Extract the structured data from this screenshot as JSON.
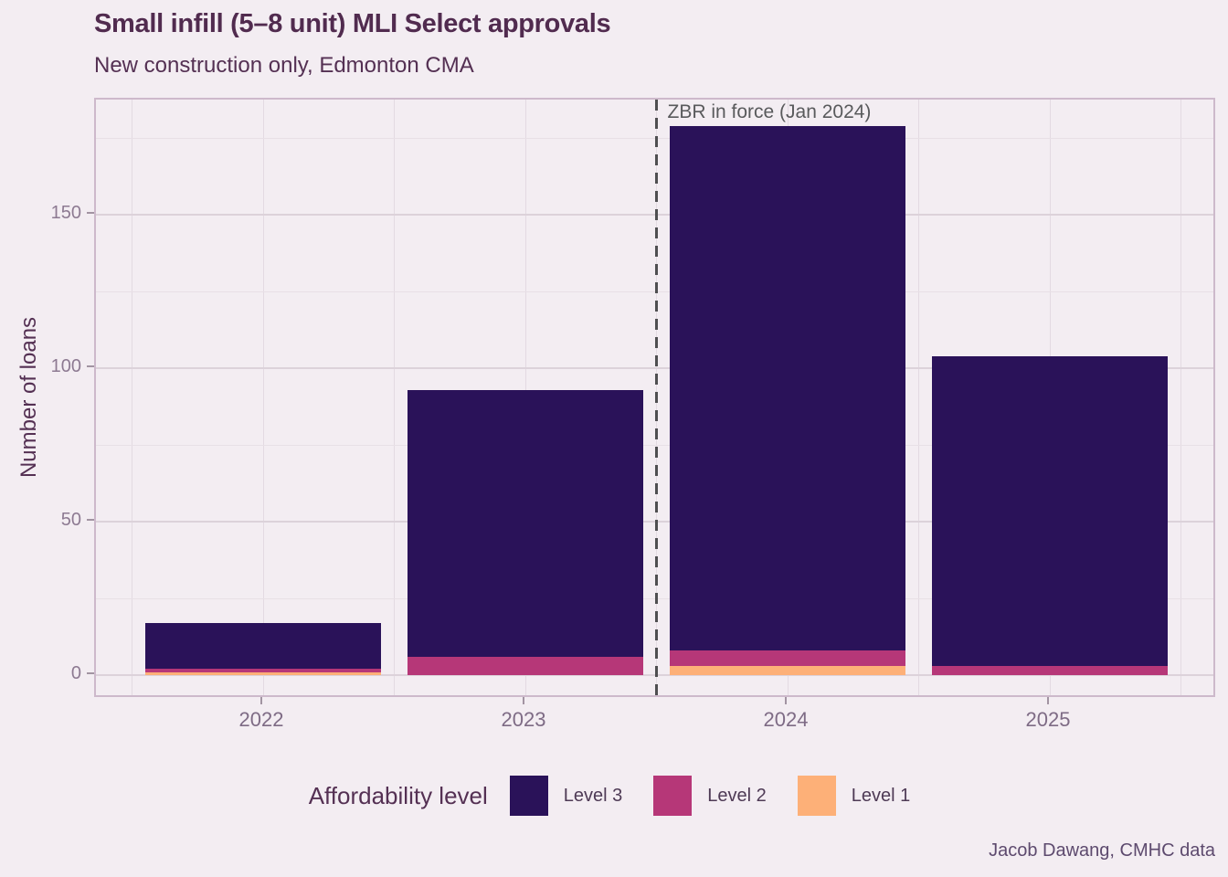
{
  "title": "Small infill (5–8 unit) MLI Select approvals",
  "subtitle": "New construction only, Edmonton CMA",
  "caption": "Jacob Dawang, CMHC data",
  "annotation": {
    "label": "ZBR in force (Jan 2024)",
    "position": "vertical dashed line between 2023 and 2024"
  },
  "y_axis": {
    "title": "Number of loans",
    "ticks": [
      0,
      50,
      100,
      150
    ],
    "minor_ticks": [
      25,
      75,
      125,
      175
    ]
  },
  "x_axis": {
    "categories": [
      "2022",
      "2023",
      "2024",
      "2025"
    ]
  },
  "legend": {
    "title": "Affordability level",
    "items": [
      {
        "label": "Level 3",
        "color": "#2a1259"
      },
      {
        "label": "Level 2",
        "color": "#b63778"
      },
      {
        "label": "Level 1",
        "color": "#fdb078"
      }
    ]
  },
  "chart_data": {
    "type": "bar",
    "stacked": true,
    "title": "Small infill (5–8 unit) MLI Select approvals",
    "subtitle": "New construction only, Edmonton CMA",
    "xlabel": "",
    "ylabel": "Number of loans",
    "ylim": [
      0,
      187
    ],
    "grid": true,
    "legend_position": "bottom",
    "categories": [
      "2022",
      "2023",
      "2024",
      "2025"
    ],
    "series": [
      {
        "name": "Level 3",
        "color": "#2a1259",
        "values": [
          15,
          87,
          171,
          101
        ]
      },
      {
        "name": "Level 2",
        "color": "#b63778",
        "values": [
          1,
          6,
          5,
          3
        ]
      },
      {
        "name": "Level 1",
        "color": "#fdb078",
        "values": [
          1,
          0,
          3,
          0
        ]
      }
    ],
    "stack_bottom_to_top": [
      "Level 1",
      "Level 2",
      "Level 3"
    ],
    "totals": [
      17,
      93,
      179,
      104
    ]
  }
}
